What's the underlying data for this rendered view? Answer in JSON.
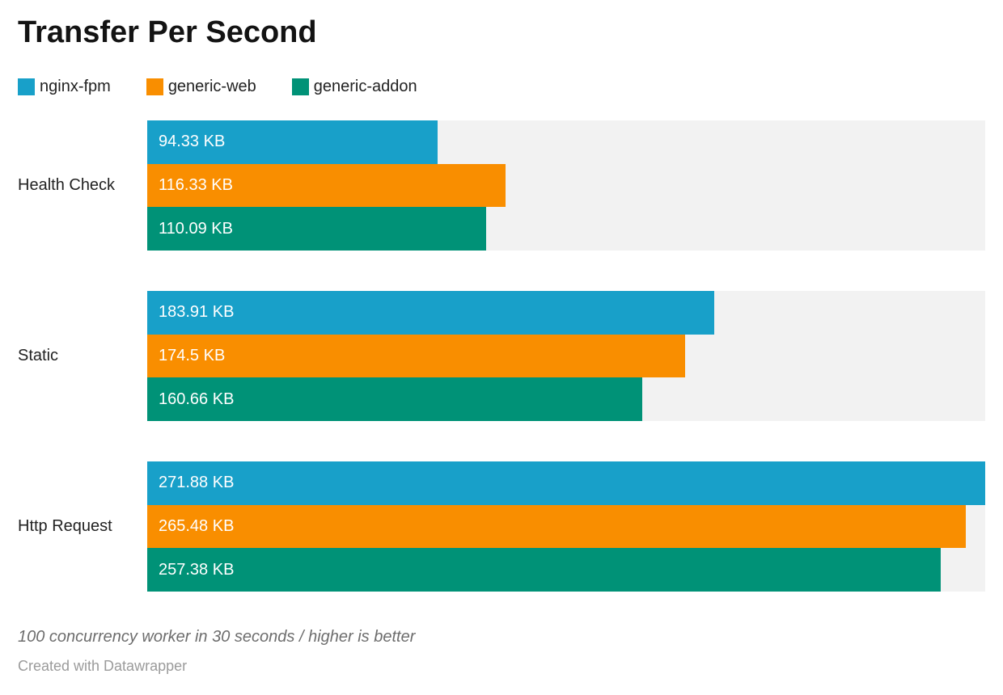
{
  "title": "Transfer Per Second",
  "legend": {
    "items": [
      {
        "label": "nginx-fpm",
        "color": "#18a0c9"
      },
      {
        "label": "generic-web",
        "color": "#f98e00"
      },
      {
        "label": "generic-addon",
        "color": "#009277"
      }
    ]
  },
  "chart_data": {
    "type": "bar",
    "orientation": "horizontal",
    "title": "Transfer Per Second",
    "categories": [
      "Health Check",
      "Static",
      "Http Request"
    ],
    "series": [
      {
        "name": "nginx-fpm",
        "color": "#18a0c9",
        "values": [
          94.33,
          183.91,
          271.88
        ],
        "labels": [
          "94.33 KB",
          "183.91 KB",
          "271.88 KB"
        ]
      },
      {
        "name": "generic-web",
        "color": "#f98e00",
        "values": [
          116.33,
          174.5,
          265.48
        ],
        "labels": [
          "116.33 KB",
          "174.5 KB",
          "265.48 KB"
        ]
      },
      {
        "name": "generic-addon",
        "color": "#009277",
        "values": [
          110.09,
          160.66,
          257.38
        ],
        "labels": [
          "110.09 KB",
          "160.66 KB",
          "257.38 KB"
        ]
      }
    ],
    "unit": "KB",
    "xmax": 271.88,
    "track_color": "#f2f2f2",
    "grid": false,
    "value_labels": "inside-start",
    "legend_position": "top"
  },
  "footer": {
    "note": "100 concurrency worker in 30 seconds / higher is better",
    "credit": "Created with Datawrapper"
  }
}
